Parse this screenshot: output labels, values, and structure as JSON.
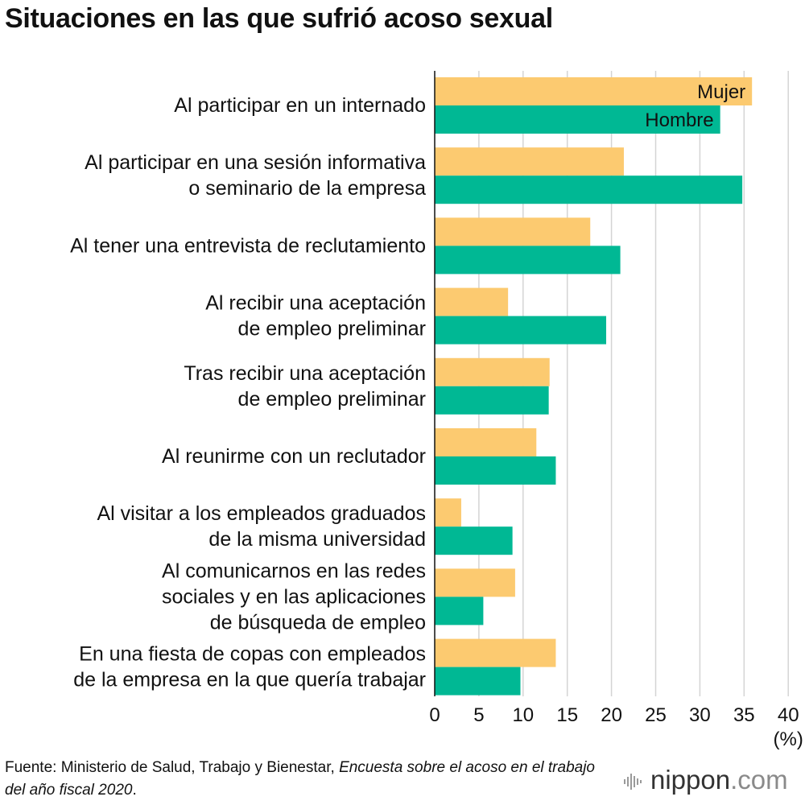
{
  "title": "Situaciones en las que sufrió acoso sexual",
  "chart_data": {
    "type": "bar",
    "orientation": "horizontal",
    "title": "Situaciones en las que sufrió acoso sexual",
    "xlabel": "(%)",
    "xlim": [
      0,
      40
    ],
    "xticks": [
      0,
      5,
      10,
      15,
      20,
      25,
      30,
      35,
      40
    ],
    "grid": true,
    "legend_placement": "inside first group",
    "categories": [
      [
        "Al participar en un internado"
      ],
      [
        "Al participar en una sesión informativa",
        "o seminario de la empresa"
      ],
      [
        "Al tener una entrevista de reclutamiento"
      ],
      [
        "Al recibir una aceptación",
        "de empleo preliminar"
      ],
      [
        "Tras recibir una aceptación",
        "de empleo preliminar"
      ],
      [
        "Al reunirme con un reclutador"
      ],
      [
        "Al visitar a los empleados graduados",
        "de la misma universidad"
      ],
      [
        "Al comunicarnos en las redes",
        "sociales y en las aplicaciones",
        "de búsqueda de empleo"
      ],
      [
        "En una fiesta de copas con empleados",
        "de la empresa en la que quería trabajar"
      ]
    ],
    "series": [
      {
        "name": "Mujer",
        "color": "#fcca70",
        "values": [
          35.9,
          21.4,
          17.6,
          8.3,
          13.0,
          11.5,
          3.0,
          9.1,
          13.7
        ]
      },
      {
        "name": "Hombre",
        "color": "#00b894",
        "values": [
          32.3,
          34.8,
          21.0,
          19.4,
          12.9,
          13.7,
          8.8,
          5.5,
          9.7
        ]
      }
    ]
  },
  "source": {
    "prefix": "Fuente: Ministerio de Salud, Trabajo y Bienestar, ",
    "italic": "Encuesta sobre el acoso en el trabajo del año fiscal 2020",
    "suffix": "."
  },
  "logo": {
    "name": "nippon",
    "tld": ".com"
  }
}
